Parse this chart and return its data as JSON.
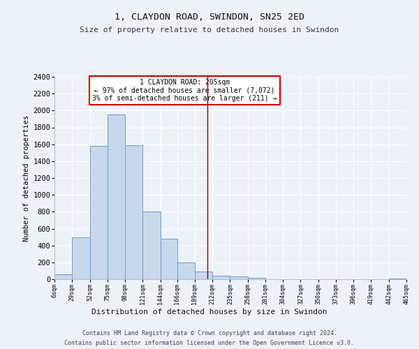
{
  "title": "1, CLAYDON ROAD, SWINDON, SN25 2ED",
  "subtitle": "Size of property relative to detached houses in Swindon",
  "xlabel": "Distribution of detached houses by size in Swindon",
  "ylabel": "Number of detached properties",
  "bar_color": "#c8d8ec",
  "bar_edge_color": "#6a9cc9",
  "background_color": "#edf2f9",
  "grid_color": "#ffffff",
  "vline_x": 205,
  "vline_color": "#800000",
  "annotation_text": "1 CLAYDON ROAD: 205sqm\n← 97% of detached houses are smaller (7,072)\n3% of semi-detached houses are larger (211) →",
  "annotation_box_color": "#ffffff",
  "annotation_box_edge": "#cc0000",
  "bins": [
    6,
    29,
    52,
    75,
    98,
    121,
    144,
    166,
    189,
    212,
    235,
    258,
    281,
    304,
    327,
    350,
    373,
    396,
    419,
    442,
    465
  ],
  "counts": [
    55,
    500,
    1580,
    1950,
    1590,
    800,
    480,
    200,
    95,
    45,
    30,
    20,
    0,
    0,
    0,
    0,
    0,
    0,
    0,
    10
  ],
  "ylim": [
    0,
    2400
  ],
  "yticks": [
    0,
    200,
    400,
    600,
    800,
    1000,
    1200,
    1400,
    1600,
    1800,
    2000,
    2200,
    2400
  ],
  "footer_line1": "Contains HM Land Registry data © Crown copyright and database right 2024.",
  "footer_line2": "Contains public sector information licensed under the Open Government Licence v3.0."
}
